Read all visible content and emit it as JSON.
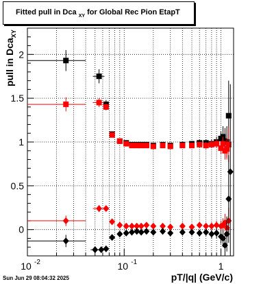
{
  "title": {
    "prefix": "Fitted pull in Dca",
    "subscript": "XY",
    "suffix": "for Global Rec Pion EtapT"
  },
  "ylabel": {
    "main": "pull in Dca",
    "subscript": "XY"
  },
  "xlabel": "pT/|q| (GeV/c)",
  "timestamp": "Sun Jun 29 08:04:32 2025",
  "x_tick_labels": [
    "10",
    "-2",
    "10",
    "-1",
    "1"
  ],
  "colors": {
    "series_black": "#000000",
    "series_red": "#ff0000"
  },
  "chart_data": {
    "type": "scatter",
    "title": "Fitted pull in Dca XY for Global Rec Pion EtapT",
    "xlabel": "pT/|q| (GeV/c)",
    "ylabel": "pull in Dca XY",
    "xscale": "log",
    "xlim": [
      0.01,
      1.35
    ],
    "ylim": [
      -0.3,
      2.3
    ],
    "grid": true,
    "y_ticks": [
      0,
      0.5,
      1,
      1.5,
      2
    ],
    "y_tick_labels": [
      "0",
      "0.5",
      "1",
      "1.5",
      "2"
    ],
    "series": [
      {
        "marker": "square",
        "color": "#000000",
        "x": [
          0.025,
          0.055,
          0.065,
          0.075,
          0.09,
          0.105,
          0.12,
          0.135,
          0.15,
          0.17,
          0.2,
          0.25,
          0.3,
          0.4,
          0.5,
          0.6,
          0.7,
          0.8,
          0.9,
          1.0,
          1.05,
          1.1,
          1.15,
          1.2
        ],
        "y": [
          1.93,
          1.75,
          1.43,
          1.09,
          1.01,
          0.99,
          0.97,
          0.97,
          0.97,
          0.97,
          0.96,
          0.97,
          0.96,
          0.97,
          0.98,
          0.99,
          0.99,
          0.98,
          1.0,
          1.04,
          1.06,
          1.01,
          1.0,
          1.3
        ],
        "xerr": [
          0.015,
          0.0075,
          0,
          0,
          0,
          0,
          0,
          0,
          0,
          0,
          0,
          0,
          0,
          0,
          0,
          0,
          0,
          0,
          0,
          0,
          0,
          0,
          0,
          0
        ],
        "yerr": [
          0.12,
          0.08,
          0.05,
          0.03,
          0.02,
          0.02,
          0.02,
          0.02,
          0.02,
          0.02,
          0.02,
          0.02,
          0.02,
          0.03,
          0.03,
          0.04,
          0.04,
          0.05,
          0.06,
          0.08,
          0.12,
          0.15,
          0.18,
          0.4
        ]
      },
      {
        "marker": "square",
        "color": "#ff0000",
        "x": [
          0.025,
          0.055,
          0.065,
          0.075,
          0.09,
          0.105,
          0.12,
          0.135,
          0.15,
          0.17,
          0.2,
          0.25,
          0.3,
          0.4,
          0.5,
          0.6,
          0.7,
          0.8,
          0.9,
          1.0,
          1.05,
          1.1,
          1.15,
          1.2
        ],
        "y": [
          1.43,
          1.45,
          1.4,
          1.08,
          1.01,
          0.98,
          0.96,
          0.96,
          0.96,
          0.96,
          0.95,
          0.96,
          0.95,
          0.96,
          0.96,
          0.97,
          0.96,
          0.97,
          0.98,
          0.93,
          0.98,
          0.9,
          0.92,
          0.97
        ],
        "xerr": [
          0.015,
          0.0075,
          0,
          0,
          0,
          0,
          0,
          0,
          0,
          0,
          0,
          0,
          0,
          0,
          0,
          0,
          0,
          0,
          0,
          0,
          0,
          0,
          0,
          0
        ],
        "yerr": [
          0.08,
          0.05,
          0.04,
          0.03,
          0.02,
          0.02,
          0.02,
          0.02,
          0.02,
          0.02,
          0.02,
          0.02,
          0.02,
          0.02,
          0.03,
          0.03,
          0.04,
          0.04,
          0.05,
          0.07,
          0.08,
          0.1,
          0.12,
          0.2
        ]
      },
      {
        "marker": "diamond",
        "color": "#ff0000",
        "x": [
          0.025,
          0.055,
          0.065,
          0.075,
          0.09,
          0.105,
          0.12,
          0.135,
          0.15,
          0.17,
          0.2,
          0.25,
          0.3,
          0.4,
          0.5,
          0.6,
          0.7,
          0.8,
          0.9,
          1.0,
          1.05,
          1.1,
          1.15,
          1.2
        ],
        "y": [
          0.1,
          0.24,
          0.24,
          0.09,
          0.05,
          0.04,
          0.04,
          0.04,
          0.04,
          0.05,
          0.04,
          0.04,
          0.03,
          0.04,
          0.03,
          0.05,
          0.04,
          0.04,
          0.05,
          0.04,
          0.05,
          0.08,
          0.02,
          0.1
        ],
        "xerr": [
          0.015,
          0.0075,
          0,
          0,
          0,
          0,
          0,
          0,
          0,
          0,
          0,
          0,
          0,
          0,
          0,
          0,
          0,
          0,
          0,
          0,
          0,
          0,
          0,
          0
        ],
        "yerr": [
          0.06,
          0.04,
          0.03,
          0.02,
          0.02,
          0.02,
          0.02,
          0.02,
          0.02,
          0.02,
          0.02,
          0.02,
          0.02,
          0.02,
          0.03,
          0.03,
          0.03,
          0.04,
          0.05,
          0.06,
          0.08,
          0.1,
          0.12,
          0.15
        ]
      },
      {
        "marker": "diamond",
        "color": "#000000",
        "x": [
          0.025,
          0.05,
          0.058,
          0.065,
          0.075,
          0.09,
          0.105,
          0.12,
          0.135,
          0.15,
          0.17,
          0.2,
          0.25,
          0.3,
          0.4,
          0.5,
          0.6,
          0.7,
          0.8,
          0.9,
          1.0,
          1.05,
          1.1,
          1.15,
          1.2,
          1.25
        ],
        "y": [
          -0.13,
          -0.23,
          -0.23,
          -0.22,
          -0.09,
          -0.05,
          -0.04,
          -0.03,
          -0.02,
          -0.03,
          -0.02,
          -0.03,
          -0.02,
          -0.04,
          -0.03,
          -0.03,
          -0.04,
          -0.03,
          -0.05,
          -0.04,
          -0.08,
          -0.1,
          -0.18,
          -0.05,
          0.35,
          0.66
        ],
        "xerr": [
          0.015,
          0.005,
          0,
          0,
          0,
          0,
          0,
          0,
          0,
          0,
          0,
          0,
          0,
          0,
          0,
          0,
          0,
          0,
          0,
          0,
          0,
          0,
          0,
          0,
          0,
          0
        ],
        "yerr": [
          0.07,
          0.04,
          0.03,
          0.03,
          0.02,
          0.02,
          0.02,
          0.02,
          0.02,
          0.02,
          0.02,
          0.02,
          0.02,
          0.02,
          0.03,
          0.03,
          0.04,
          0.04,
          0.05,
          0.06,
          0.08,
          0.1,
          0.15,
          0.2,
          0.5,
          1.0
        ]
      }
    ]
  }
}
